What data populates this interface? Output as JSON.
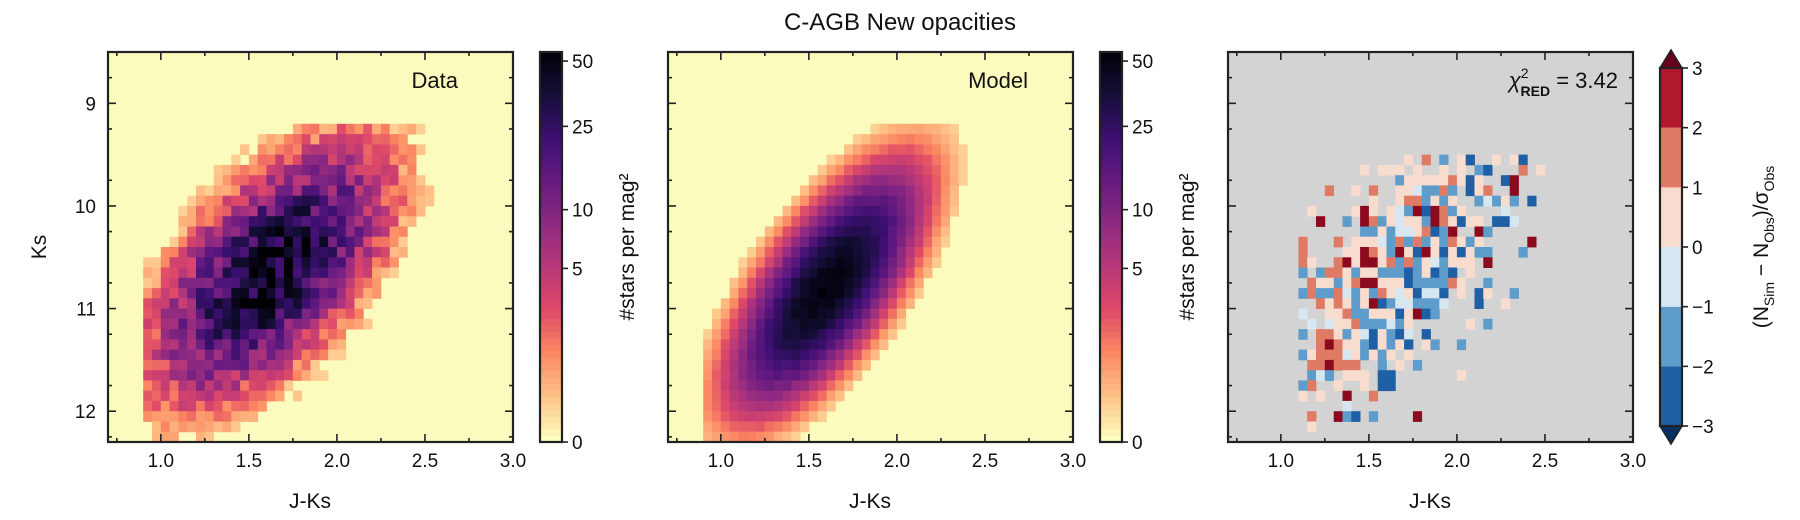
{
  "figure": {
    "title": "C-AGB New opacities"
  },
  "colors": {
    "density_colormap": [
      "#fcfdbf",
      "#fec287",
      "#fb8761",
      "#de4968",
      "#b73779",
      "#8c2981",
      "#641a80",
      "#3b0f70",
      "#140e36",
      "#000004"
    ],
    "residual_colormap": [
      "#1f5fa5",
      "#5e9dcb",
      "#d6e7f1",
      "#f8ddce",
      "#df7b65",
      "#b2182b"
    ],
    "residual_background": "#d3d3d3",
    "density_background": "#fbfbbd"
  },
  "chart_data": [
    {
      "type": "heatmap",
      "panel": "data",
      "label": "Data",
      "xlabel": "J-Ks",
      "ylabel": "Ks",
      "xlim": [
        0.7,
        3.0
      ],
      "ylim": [
        12.3,
        8.5
      ],
      "xticks": [
        "1.0",
        "1.5",
        "2.0",
        "2.5",
        "3.0"
      ],
      "yticks": [
        "9",
        "10",
        "11",
        "12"
      ],
      "bin_width_jks": 0.05,
      "bin_height_ks": 0.1,
      "distribution": {
        "center_jks": 1.62,
        "center_ks": 10.65,
        "peak_density": 45,
        "spread_jks": 0.24,
        "spread_ks": 0.55
      },
      "colorbar": {
        "label": "#stars per mag²",
        "ticks": [
          "0",
          "5",
          "10",
          "25",
          "50"
        ],
        "range": [
          0,
          55
        ]
      }
    },
    {
      "type": "heatmap",
      "panel": "model",
      "label": "Model",
      "xlabel": "J-Ks",
      "ylabel": "",
      "xlim": [
        0.7,
        3.0
      ],
      "ylim": [
        12.3,
        8.5
      ],
      "xticks": [
        "1.0",
        "1.5",
        "2.0",
        "2.5",
        "3.0"
      ],
      "yticks": [],
      "bin_width_jks": 0.05,
      "bin_height_ks": 0.1,
      "distribution": {
        "center_jks": 1.6,
        "center_ks": 10.8,
        "peak_density": 50,
        "spread_jks": 0.18,
        "spread_ks": 0.55
      },
      "colorbar": {
        "label": "#stars per mag²",
        "ticks": [
          "0",
          "5",
          "10",
          "25",
          "50"
        ],
        "range": [
          0,
          55
        ]
      }
    },
    {
      "type": "heatmap",
      "panel": "residual",
      "label_prefix": "χ",
      "label_sup": "2",
      "label_sub": "RED",
      "label_suffix": " = 3.42",
      "xlabel": "J-Ks",
      "ylabel": "",
      "xlim": [
        0.7,
        3.0
      ],
      "ylim": [
        12.3,
        8.5
      ],
      "xticks": [
        "1.0",
        "1.5",
        "2.0",
        "2.5",
        "3.0"
      ],
      "yticks": [],
      "value_range": [
        -3,
        3
      ],
      "colorbar": {
        "label_main": "(N",
        "label_sub1": "Sim",
        "label_mid": " − N",
        "label_sub2": "Obs",
        "label_slash": ")/σ",
        "label_sub3": "Obs",
        "ticks": [
          "−3",
          "−2",
          "−1",
          "0",
          "1",
          "2",
          "3"
        ]
      }
    }
  ]
}
